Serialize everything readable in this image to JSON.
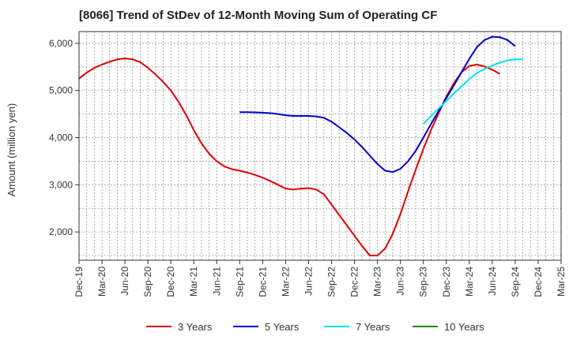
{
  "chart_data": {
    "type": "line",
    "title": "[8066]  Trend of StDev of 12-Month Moving Sum of Operating CF",
    "xlabel": "",
    "ylabel": "Amount (million yen)",
    "ylim": [
      1400,
      6250
    ],
    "yticks": [
      2000,
      3000,
      4000,
      5000,
      6000
    ],
    "ytick_labels": [
      "2,000",
      "3,000",
      "4,000",
      "5,000",
      "6,000"
    ],
    "x_tick_labels": [
      "Dec-19",
      "Mar-20",
      "Jun-20",
      "Sep-20",
      "Dec-20",
      "Mar-21",
      "Jun-21",
      "Sep-21",
      "Dec-21",
      "Mar-22",
      "Jun-22",
      "Sep-22",
      "Dec-22",
      "Mar-23",
      "Jun-23",
      "Sep-23",
      "Dec-23",
      "Mar-24",
      "Jun-24",
      "Sep-24",
      "Dec-24",
      "Mar-25"
    ],
    "grid": true,
    "legend_position": "bottom",
    "series": [
      {
        "name": "3 Years",
        "color": "#e00000",
        "start": "Dec-19",
        "values": [
          5250,
          5380,
          5480,
          5550,
          5610,
          5660,
          5680,
          5660,
          5600,
          5480,
          5340,
          5180,
          5000,
          4760,
          4480,
          4160,
          3880,
          3660,
          3500,
          3390,
          3330,
          3300,
          3260,
          3210,
          3150,
          3080,
          3000,
          2920,
          2900,
          2920,
          2930,
          2900,
          2800,
          2580,
          2360,
          2140,
          1920,
          1700,
          1500,
          1500,
          1650,
          1960,
          2380,
          2860,
          3320,
          3760,
          4160,
          4520,
          4870,
          5160,
          5390,
          5520,
          5550,
          5510,
          5440,
          5350
        ]
      },
      {
        "name": "5 Years",
        "color": "#0000cc",
        "start": "Sep-21",
        "values": [
          4540,
          4540,
          4535,
          4530,
          4520,
          4500,
          4475,
          4460,
          4460,
          4460,
          4450,
          4420,
          4340,
          4220,
          4100,
          3960,
          3800,
          3620,
          3440,
          3300,
          3270,
          3340,
          3500,
          3720,
          4000,
          4290,
          4570,
          4840,
          5110,
          5390,
          5670,
          5920,
          6070,
          6140,
          6130,
          6070,
          5940
        ]
      },
      {
        "name": "7 Years",
        "color": "#00e5ee",
        "start": "Sep-23",
        "values": [
          4290,
          4460,
          4620,
          4780,
          4940,
          5090,
          5240,
          5370,
          5460,
          5530,
          5590,
          5640,
          5660,
          5660
        ]
      },
      {
        "name": "10 Years",
        "color": "#1a8a1a",
        "start": "Dec-24",
        "values": []
      }
    ]
  }
}
